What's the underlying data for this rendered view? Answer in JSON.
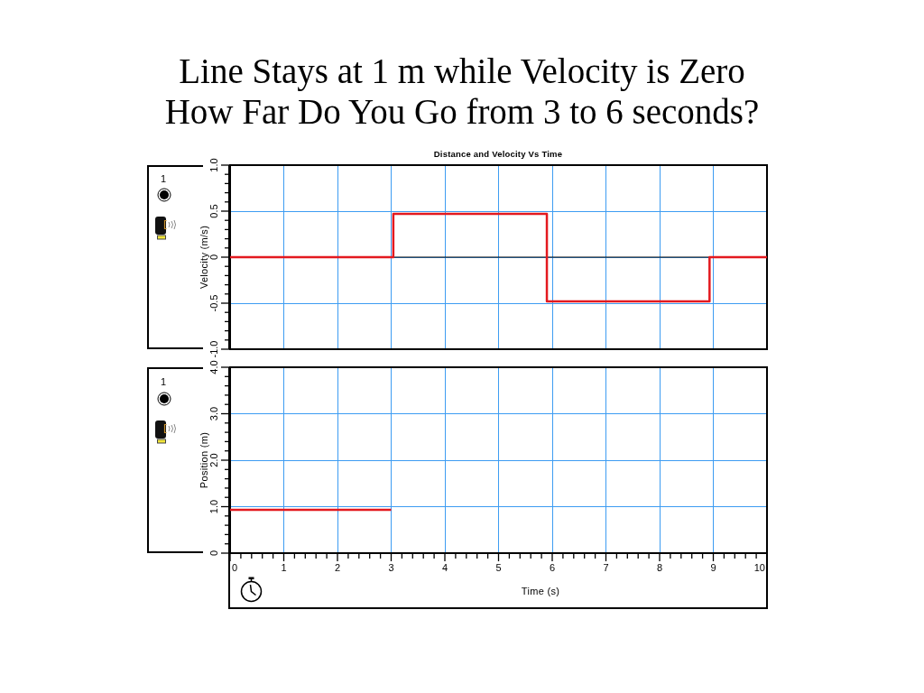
{
  "chart_data": [
    {
      "type": "step",
      "title": "Line Stays at 1 m while Velocity is Zero",
      "subtitle": "How Far Do You Go from 3 to 6 seconds?",
      "annotations": [
        "Distance and Velocity Vs Time",
        "1"
      ],
      "ylabel": "Velocity (m/s)",
      "x": [
        0,
        3.04,
        5.9,
        8.93,
        10
      ],
      "values": [
        0,
        0.47,
        -0.48,
        0,
        0
      ],
      "color": "#e3191f",
      "xlim": [
        0,
        10
      ],
      "xticks": [
        0,
        1,
        2,
        3,
        4,
        5,
        6,
        7,
        8,
        9,
        10
      ],
      "ylim": [
        -1,
        1
      ],
      "yticks": [
        {
          "value": -1,
          "label": "-1.0"
        },
        {
          "value": -0.9,
          "label": null
        },
        {
          "value": -0.8,
          "label": null
        },
        {
          "value": -0.7,
          "label": null
        },
        {
          "value": -0.6,
          "label": null
        },
        -0.5,
        {
          "value": -0.4,
          "label": null
        },
        {
          "value": -0.3,
          "label": null
        },
        {
          "value": -0.2,
          "label": null
        },
        {
          "value": -0.1,
          "label": null
        },
        0,
        {
          "value": 0.1,
          "label": null
        },
        {
          "value": 0.2,
          "label": null
        },
        {
          "value": 0.3,
          "label": null
        },
        {
          "value": 0.4,
          "label": null
        },
        0.5,
        {
          "value": 0.6,
          "label": null
        },
        {
          "value": 0.7,
          "label": null
        },
        {
          "value": 0.8,
          "label": null
        },
        {
          "value": 0.9,
          "label": null
        },
        {
          "value": 1,
          "label": "1.0"
        }
      ],
      "grid": true,
      "tick_labels": "y",
      "ref_lines": [
        {
          "axis": "y",
          "value": 0,
          "color": "#000000"
        }
      ]
    },
    {
      "type": "line",
      "annotations": [
        "1"
      ],
      "xlabel": "Time (s)",
      "ylabel": "Position (m)",
      "x": [
        0,
        3
      ],
      "values": [
        0.93,
        0.93
      ],
      "color": "#e3191f",
      "xlim": [
        0,
        10
      ],
      "xticks": [
        0,
        {
          "value": 0.2,
          "label": null
        },
        {
          "value": 0.4,
          "label": null
        },
        {
          "value": 0.6,
          "label": null
        },
        {
          "value": 0.8,
          "label": null
        },
        1,
        {
          "value": 1.2,
          "label": null
        },
        {
          "value": 1.4,
          "label": null
        },
        {
          "value": 1.6,
          "label": null
        },
        {
          "value": 1.8,
          "label": null
        },
        2,
        {
          "value": 2.2,
          "label": null
        },
        {
          "value": 2.4,
          "label": null
        },
        {
          "value": 2.6,
          "label": null
        },
        {
          "value": 2.8,
          "label": null
        },
        3,
        {
          "value": 3.2,
          "label": null
        },
        {
          "value": 3.4,
          "label": null
        },
        {
          "value": 3.6,
          "label": null
        },
        {
          "value": 3.8,
          "label": null
        },
        4,
        {
          "value": 4.2,
          "label": null
        },
        {
          "value": 4.4,
          "label": null
        },
        {
          "value": 4.6,
          "label": null
        },
        {
          "value": 4.8,
          "label": null
        },
        5,
        {
          "value": 5.2,
          "label": null
        },
        {
          "value": 5.4,
          "label": null
        },
        {
          "value": 5.6,
          "label": null
        },
        {
          "value": 5.8,
          "label": null
        },
        6,
        {
          "value": 6.2,
          "label": null
        },
        {
          "value": 6.4,
          "label": null
        },
        {
          "value": 6.6,
          "label": null
        },
        {
          "value": 6.8,
          "label": null
        },
        7,
        {
          "value": 7.2,
          "label": null
        },
        {
          "value": 7.4,
          "label": null
        },
        {
          "value": 7.6,
          "label": null
        },
        {
          "value": 7.8,
          "label": null
        },
        8,
        {
          "value": 8.2,
          "label": null
        },
        {
          "value": 8.4,
          "label": null
        },
        {
          "value": 8.6,
          "label": null
        },
        {
          "value": 8.8,
          "label": null
        },
        9,
        {
          "value": 9.2,
          "label": null
        },
        {
          "value": 9.4,
          "label": null
        },
        {
          "value": 9.6,
          "label": null
        },
        {
          "value": 9.8,
          "label": null
        },
        10
      ],
      "ylim": [
        0,
        4
      ],
      "yticks": [
        0,
        {
          "value": 0.2,
          "label": null
        },
        {
          "value": 0.4,
          "label": null
        },
        {
          "value": 0.6,
          "label": null
        },
        {
          "value": 0.8,
          "label": null
        },
        {
          "value": 1,
          "label": "1.0"
        },
        {
          "value": 1.2,
          "label": null
        },
        {
          "value": 1.4,
          "label": null
        },
        {
          "value": 1.6,
          "label": null
        },
        {
          "value": 1.8,
          "label": null
        },
        {
          "value": 2,
          "label": "2.0"
        },
        {
          "value": 2.2,
          "label": null
        },
        {
          "value": 2.4,
          "label": null
        },
        {
          "value": 2.6,
          "label": null
        },
        {
          "value": 2.8,
          "label": null
        },
        {
          "value": 3,
          "label": "3.0"
        },
        {
          "value": 3.2,
          "label": null
        },
        {
          "value": 3.4,
          "label": null
        },
        {
          "value": 3.6,
          "label": null
        },
        {
          "value": 3.8,
          "label": null
        },
        {
          "value": 4,
          "label": "4.0"
        }
      ],
      "grid": true
    }
  ]
}
